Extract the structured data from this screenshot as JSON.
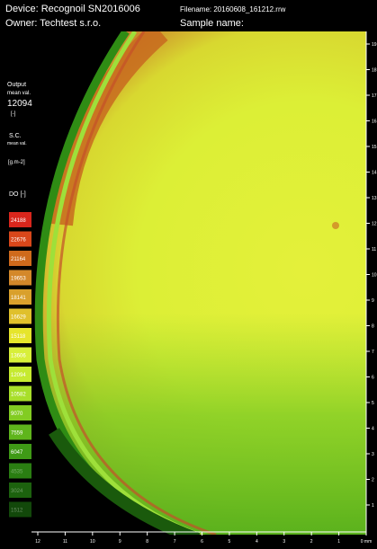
{
  "header": {
    "device": "Device: Recognoil SN2016006",
    "filename": "Filename: 20160608_161212.rrw",
    "owner": "Owner: Techtest s.r.o.",
    "sample": "Sample name:"
  },
  "side_panel": {
    "output_title": "Output",
    "output_sub": "mean val.",
    "output_value": "12094",
    "output_unit": "[-]",
    "sc_title": "S.C.",
    "sc_sub": "mean val.",
    "sc_unit": "[g.m-2]",
    "do_title": "DO [-]"
  },
  "legend": [
    {
      "label": "24188",
      "color": "#d9261c"
    },
    {
      "label": "22676",
      "color": "#d9471a"
    },
    {
      "label": "21164",
      "color": "#cf6a1c"
    },
    {
      "label": "19653",
      "color": "#d4882a"
    },
    {
      "label": "18141",
      "color": "#d9a02c"
    },
    {
      "label": "16629",
      "color": "#e0c02c"
    },
    {
      "label": "15118",
      "color": "#e6e52c"
    },
    {
      "label": "13606",
      "color": "#d8ef3a"
    },
    {
      "label": "12094",
      "color": "#c6ea30"
    },
    {
      "label": "10582",
      "color": "#a8df2a"
    },
    {
      "label": "9070",
      "color": "#82cc22"
    },
    {
      "label": "7559",
      "color": "#5fb51c"
    },
    {
      "label": "6047",
      "color": "#3f9a16"
    },
    {
      "label": "4535",
      "color": "#2a7e12"
    },
    {
      "label": "3024",
      "color": "#1c620e"
    },
    {
      "label": "1512",
      "color": "#12480a"
    }
  ],
  "bottom_axis": [
    "12",
    "11",
    "10",
    "9",
    "8",
    "7",
    "6",
    "5",
    "4",
    "3",
    "2",
    "1",
    "0 mm"
  ],
  "right_axis": [
    "1",
    "2",
    "3",
    "4",
    "5",
    "6",
    "7",
    "8",
    "9",
    "10",
    "11",
    "12",
    "13",
    "14",
    "15",
    "16",
    "17",
    "18",
    "19"
  ]
}
